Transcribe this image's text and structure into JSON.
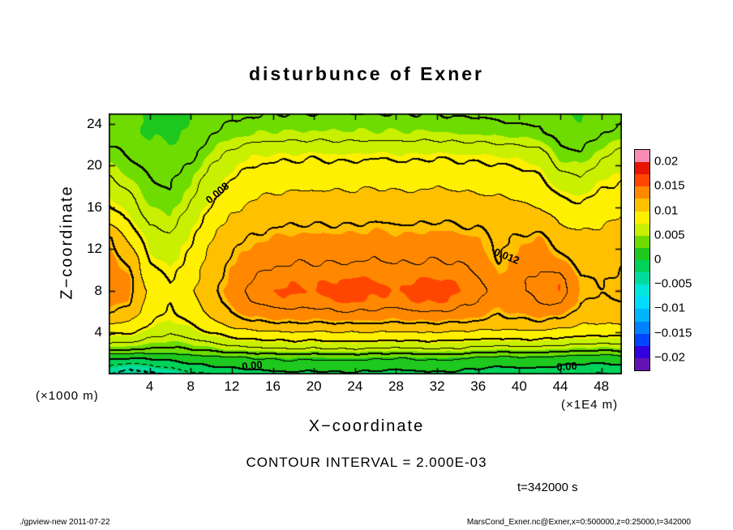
{
  "title": "disturbunce of Exner",
  "axes": {
    "x_label": "X−coordinate",
    "y_label": "Z−coordinate",
    "x_unit": "(×1E4 m)",
    "y_unit": "(×1000 m)",
    "x_ticks": [
      4,
      8,
      12,
      16,
      20,
      24,
      28,
      32,
      36,
      40,
      44,
      48
    ],
    "y_ticks": [
      4,
      8,
      12,
      16,
      20,
      24
    ],
    "x_range": [
      0,
      50
    ],
    "y_range": [
      0,
      25
    ]
  },
  "colorbar": {
    "labels": [
      "0.02",
      "0.015",
      "0.01",
      "0.005",
      "0",
      "−0.005",
      "−0.01",
      "−0.015",
      "−0.02"
    ]
  },
  "annotations": {
    "contour_interval": "CONTOUR INTERVAL = 2.000E-03",
    "time": "t=342000 s",
    "footer_left": "./gpview-new  2011-07-22",
    "footer_right": "MarsCond_Exner.nc@Exner,x=0:500000,z=0:25000,t=342000"
  },
  "contour_labels": [
    {
      "text": "0.008",
      "x": 10.6,
      "z": 17.4,
      "rot": -40
    },
    {
      "text": "0.012",
      "x": 38.8,
      "z": 11.3,
      "rot": 22
    },
    {
      "text": "0.00",
      "x": 14.0,
      "z": 0.85,
      "rot": -6
    },
    {
      "text": "0.00",
      "x": 44.6,
      "z": 0.75,
      "rot": -4
    }
  ],
  "chart_data": {
    "type": "heatmap",
    "title": "disturbunce of Exner",
    "xlabel": "X−coordinate (×1E4 m)",
    "ylabel": "Z−coordinate (×1000 m)",
    "contour_interval": 0.002,
    "tone_interval": 0.0025,
    "levels_range": [
      -0.02,
      0.02
    ],
    "x_range": [
      0,
      50
    ],
    "z_range": [
      0,
      25
    ],
    "x": [
      0,
      2,
      4,
      6,
      8,
      10,
      12,
      14,
      16,
      18,
      20,
      22,
      24,
      26,
      28,
      30,
      32,
      34,
      36,
      38,
      40,
      42,
      44,
      46,
      48,
      50
    ],
    "z": [
      25,
      23,
      21,
      19,
      17,
      15,
      13,
      11,
      9,
      8,
      7,
      6,
      5,
      4,
      3.2,
      2.4,
      1.6,
      0.8,
      0
    ],
    "values_scale": 0.001,
    "values": [
      [
        3.0,
        2.8,
        2.2,
        2.0,
        2.4,
        3.2,
        3.6,
        3.8,
        4.0,
        4.0,
        4.0,
        4.0,
        4.0,
        4.0,
        4.0,
        4.0,
        4.0,
        3.8,
        3.8,
        3.6,
        3.4,
        3.4,
        2.6,
        2.4,
        3.0,
        3.4
      ],
      [
        3.4,
        3.0,
        2.4,
        2.2,
        2.8,
        4.0,
        4.6,
        5.0,
        5.2,
        5.2,
        5.2,
        5.2,
        5.2,
        5.2,
        5.2,
        5.2,
        5.2,
        5.0,
        5.0,
        4.8,
        4.6,
        4.4,
        3.2,
        3.0,
        4.0,
        4.6
      ],
      [
        4.5,
        3.8,
        3.0,
        2.8,
        3.6,
        5.2,
        6.6,
        7.4,
        7.6,
        7.6,
        7.8,
        7.6,
        7.6,
        7.8,
        7.6,
        7.6,
        7.8,
        7.6,
        7.6,
        7.4,
        7.2,
        6.8,
        4.6,
        4.2,
        5.6,
        6.6
      ],
      [
        6.0,
        5.0,
        4.0,
        3.6,
        4.8,
        6.6,
        7.8,
        8.6,
        8.8,
        9.0,
        9.0,
        9.0,
        9.0,
        9.2,
        9.0,
        9.0,
        9.2,
        9.0,
        8.8,
        8.8,
        8.6,
        8.0,
        6.4,
        6.0,
        7.2,
        7.8
      ],
      [
        7.5,
        6.2,
        4.6,
        4.2,
        5.6,
        7.6,
        9.0,
        9.8,
        10.2,
        10.4,
        10.4,
        10.4,
        10.4,
        10.6,
        10.4,
        10.4,
        10.6,
        10.4,
        10.2,
        10.0,
        9.8,
        9.2,
        8.0,
        7.6,
        8.4,
        8.8
      ],
      [
        9.0,
        7.6,
        5.6,
        5.2,
        6.8,
        8.8,
        10.2,
        11.0,
        11.4,
        11.6,
        11.6,
        11.6,
        11.6,
        11.8,
        11.6,
        11.6,
        11.8,
        11.6,
        11.4,
        11.2,
        11.0,
        10.6,
        9.6,
        9.2,
        9.6,
        10.0
      ],
      [
        12.4,
        9.6,
        6.8,
        6.2,
        7.8,
        9.8,
        11.4,
        12.2,
        12.6,
        12.8,
        12.8,
        12.8,
        12.8,
        13.0,
        12.8,
        12.8,
        13.0,
        12.8,
        12.6,
        11.6,
        12.2,
        12.6,
        11.0,
        10.4,
        10.6,
        11.0
      ],
      [
        13.0,
        11.6,
        8.0,
        7.0,
        8.6,
        10.6,
        12.2,
        13.2,
        13.6,
        13.8,
        13.8,
        13.8,
        13.8,
        14.0,
        13.8,
        13.8,
        14.0,
        13.8,
        13.4,
        11.8,
        13.0,
        13.6,
        12.4,
        11.4,
        11.4,
        11.8
      ],
      [
        13.2,
        12.6,
        9.0,
        8.0,
        9.2,
        11.2,
        12.8,
        14.0,
        14.6,
        14.8,
        14.8,
        15.0,
        15.2,
        15.0,
        14.8,
        15.0,
        15.2,
        14.8,
        14.2,
        12.6,
        13.6,
        14.4,
        14.8,
        12.2,
        12.0,
        12.2
      ],
      [
        13.4,
        12.8,
        9.4,
        8.4,
        9.6,
        11.4,
        13.0,
        14.4,
        15.0,
        15.2,
        15.0,
        15.4,
        15.6,
        15.2,
        15.0,
        15.4,
        15.6,
        15.0,
        14.4,
        13.2,
        13.8,
        14.6,
        15.0,
        12.4,
        12.2,
        12.4
      ],
      [
        13.0,
        12.4,
        9.2,
        8.2,
        9.4,
        11.2,
        12.8,
        14.0,
        14.6,
        14.8,
        14.6,
        15.0,
        15.2,
        14.8,
        14.6,
        15.0,
        15.2,
        14.6,
        14.0,
        12.8,
        13.4,
        14.2,
        14.4,
        12.0,
        11.8,
        12.0
      ],
      [
        12.0,
        11.4,
        8.8,
        7.8,
        9.0,
        10.6,
        12.2,
        13.2,
        13.6,
        13.8,
        13.6,
        14.0,
        14.0,
        13.8,
        13.6,
        14.0,
        14.0,
        13.8,
        13.2,
        12.2,
        12.8,
        13.2,
        13.0,
        11.4,
        11.2,
        11.4
      ],
      [
        10.4,
        10.0,
        8.2,
        7.2,
        8.2,
        9.6,
        11.0,
        11.8,
        12.0,
        12.2,
        12.0,
        12.2,
        12.2,
        12.2,
        12.0,
        12.2,
        12.2,
        12.0,
        11.8,
        11.4,
        11.6,
        11.8,
        11.4,
        10.4,
        10.2,
        10.4
      ],
      [
        8.4,
        8.2,
        7.0,
        6.2,
        7.0,
        8.0,
        9.0,
        9.6,
        9.8,
        10.0,
        9.8,
        10.0,
        10.0,
        10.0,
        9.8,
        10.0,
        10.0,
        9.8,
        9.6,
        9.4,
        9.6,
        9.6,
        9.2,
        8.8,
        8.6,
        8.8
      ],
      [
        6.6,
        6.4,
        5.6,
        5.0,
        5.6,
        6.4,
        7.2,
        7.6,
        7.8,
        8.0,
        7.8,
        8.0,
        8.0,
        8.0,
        7.8,
        8.0,
        8.0,
        7.8,
        7.6,
        7.4,
        7.6,
        7.6,
        7.2,
        7.0,
        6.8,
        7.0
      ],
      [
        4.4,
        4.2,
        3.8,
        3.6,
        4.0,
        4.6,
        5.2,
        5.6,
        5.8,
        6.0,
        5.8,
        6.0,
        6.0,
        5.8,
        5.6,
        5.8,
        6.0,
        5.8,
        5.4,
        5.1,
        5.3,
        5.3,
        4.9,
        4.6,
        4.4,
        4.7
      ],
      [
        0.6,
        0.2,
        0.4,
        0.8,
        1.2,
        1.6,
        1.9,
        2.2,
        2.4,
        2.6,
        2.4,
        2.6,
        2.6,
        2.4,
        2.2,
        2.4,
        2.6,
        2.4,
        2.0,
        1.7,
        1.9,
        1.9,
        1.5,
        1.2,
        1.0,
        1.3
      ],
      [
        -2.0,
        -2.8,
        -2.2,
        -1.4,
        -0.6,
        0.0,
        0.3,
        0.6,
        0.8,
        1.0,
        0.8,
        1.0,
        1.0,
        0.8,
        0.6,
        0.8,
        1.0,
        0.8,
        0.4,
        0.1,
        0.3,
        0.3,
        -0.1,
        -0.4,
        -0.5,
        -0.2
      ],
      [
        -4.2,
        -5.4,
        -4.8,
        -3.6,
        -2.6,
        -2.0,
        -1.4,
        -0.8,
        -0.6,
        -0.4,
        -0.6,
        -0.4,
        -0.4,
        -0.6,
        -0.8,
        -0.6,
        -0.4,
        -0.6,
        -1.0,
        -1.4,
        -1.2,
        -1.0,
        -1.6,
        -2.0,
        -2.2,
        -1.8
      ]
    ],
    "palette": [
      "#6414B4",
      "#3200DC",
      "#0046FF",
      "#0082FF",
      "#00B4FF",
      "#00DCFF",
      "#00E6DC",
      "#00DCA0",
      "#00D25A",
      "#1EC81E",
      "#6EDC00",
      "#C8F000",
      "#FFF000",
      "#FFC000",
      "#FF8800",
      "#FF4600",
      "#E61400",
      "#FA8CB4"
    ],
    "render": {
      "wiggle_amp_milli": 0.18,
      "fx": 2.2,
      "fz": 1.6
    }
  }
}
